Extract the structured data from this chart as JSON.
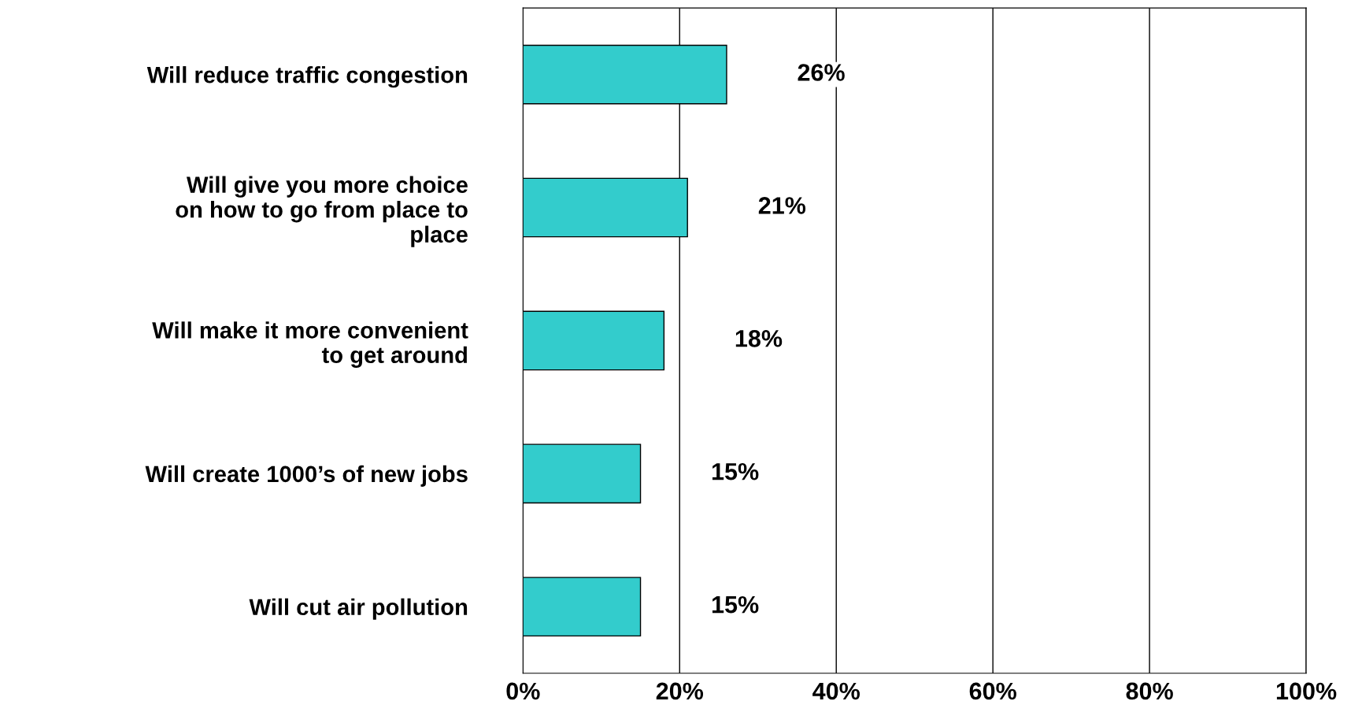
{
  "chart_data": {
    "type": "bar",
    "orientation": "horizontal",
    "categories": [
      "Will reduce traffic congestion",
      "Will give you more choice\non how to go from place to\nplace",
      "Will make it more convenient\nto get around",
      "Will create 1000’s of new jobs",
      "Will cut air pollution"
    ],
    "values": [
      26,
      21,
      18,
      15,
      15
    ],
    "color": "#33cccc",
    "value_labels": [
      "26%",
      "21%",
      "18%",
      "15%",
      "15%"
    ],
    "xlim": [
      0,
      100
    ],
    "xticks": [
      {
        "value": 0,
        "label": "0%"
      },
      {
        "value": 20,
        "label": "20%"
      },
      {
        "value": 40,
        "label": "40%"
      },
      {
        "value": 60,
        "label": "60%"
      },
      {
        "value": 80,
        "label": "80%"
      },
      {
        "value": 100,
        "label": "100%"
      }
    ],
    "grid": "x"
  }
}
